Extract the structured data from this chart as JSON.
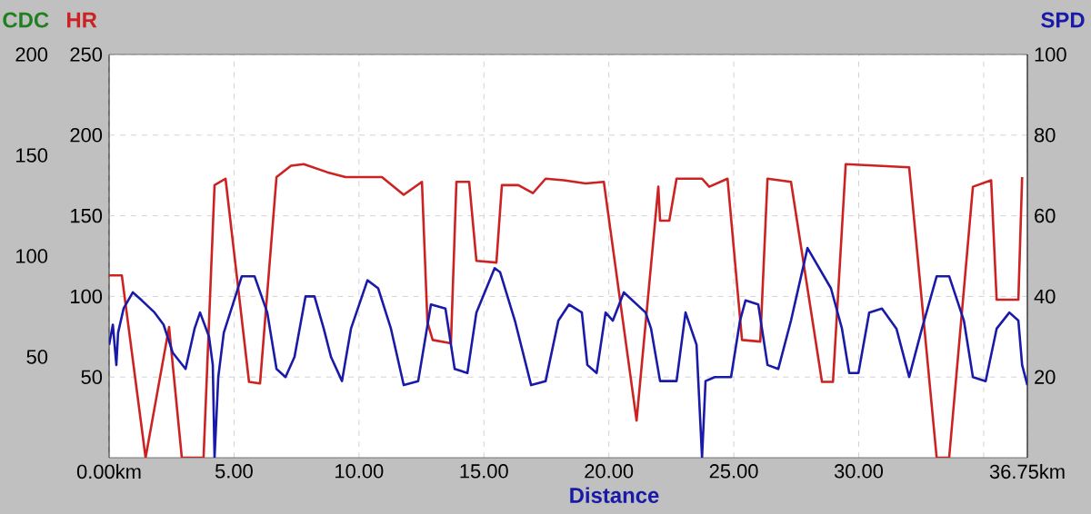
{
  "chart_data": {
    "type": "line",
    "xlabel": "Distance",
    "ylabel": "HR",
    "y2label": "SPD",
    "y3label": "CDC",
    "xlim": [
      0,
      36.75
    ],
    "xticks": [
      {
        "value": 0,
        "label": "0.00km"
      },
      {
        "value": 5,
        "label": "5.00"
      },
      {
        "value": 10,
        "label": "10.00"
      },
      {
        "value": 15,
        "label": "15.00"
      },
      {
        "value": 20,
        "label": "20.00"
      },
      {
        "value": 25,
        "label": "25.00"
      },
      {
        "value": 30,
        "label": "30.00"
      },
      {
        "value": 35,
        "label": null
      },
      {
        "value": 36.75,
        "label": "36.75km"
      }
    ],
    "ylim": [
      0,
      250
    ],
    "yticks": [
      50,
      100,
      150,
      200,
      250
    ],
    "y2lim": [
      0,
      100
    ],
    "y2ticks": [
      20,
      40,
      60,
      80,
      100
    ],
    "y3lim": [
      0,
      200
    ],
    "y3ticks": [
      50,
      100,
      150,
      200
    ],
    "grid": true,
    "marker": "none",
    "line_style": "solid",
    "series": [
      {
        "name": null,
        "axis": "y",
        "color": "#cc2222",
        "x": [
          0,
          0.51,
          1.46,
          2.4,
          2.91,
          3.42,
          3.78,
          4.22,
          4.66,
          5.6,
          6.04,
          6.7,
          7.28,
          7.79,
          8.73,
          9.46,
          10.92,
          11.79,
          12.52,
          12.74,
          12.95,
          13.68,
          13.9,
          14.41,
          14.7,
          15.5,
          15.72,
          16.38,
          16.96,
          17.47,
          18.2,
          19.07,
          19.8,
          21.11,
          21.98,
          22.05,
          22.42,
          22.71,
          23.73,
          24.02,
          24.75,
          25.33,
          26.06,
          26.35,
          27.29,
          28.53,
          28.97,
          29.48,
          32.02,
          33.12,
          33.62,
          34.57,
          35.3,
          35.52,
          36.39,
          36.54
        ],
        "values": [
          113,
          113,
          0,
          81,
          0,
          0,
          0,
          169,
          173,
          47,
          46,
          174,
          181,
          182,
          177,
          174,
          174,
          163,
          171,
          84,
          73,
          71,
          171,
          171,
          122,
          121,
          169,
          169,
          164,
          173,
          172,
          170,
          171,
          23,
          168,
          147,
          147,
          173,
          173,
          168,
          173,
          73,
          72,
          173,
          171,
          47,
          47,
          182,
          180,
          0,
          0,
          168,
          172,
          98,
          98,
          174
        ]
      },
      {
        "name": null,
        "axis": "y2",
        "color": "#1a1aa8",
        "x": [
          0,
          0.15,
          0.29,
          0.36,
          0.58,
          0.95,
          1.31,
          1.82,
          2.18,
          2.55,
          3.06,
          3.42,
          3.64,
          4.0,
          4.15,
          4.22,
          4.37,
          4.59,
          4.95,
          5.31,
          5.82,
          6.33,
          6.7,
          7.06,
          7.42,
          7.86,
          8.22,
          8.59,
          8.88,
          9.32,
          9.68,
          10.34,
          10.77,
          11.28,
          11.79,
          12.37,
          12.88,
          13.46,
          13.83,
          14.34,
          14.7,
          15.43,
          15.65,
          16.24,
          16.89,
          17.47,
          17.98,
          18.41,
          18.92,
          19.14,
          19.51,
          19.87,
          20.16,
          20.6,
          21.47,
          21.69,
          22.05,
          22.71,
          23.07,
          23.51,
          23.73,
          23.87,
          24.24,
          24.89,
          25.25,
          25.47,
          25.98,
          26.35,
          26.78,
          27.29,
          27.95,
          28.89,
          29.33,
          29.62,
          29.99,
          30.42,
          30.93,
          31.51,
          32.02,
          32.53,
          33.12,
          33.62,
          34.21,
          34.57,
          35.08,
          35.52,
          36.03,
          36.39,
          36.54,
          36.75
        ],
        "values": [
          28,
          33,
          23,
          31,
          37,
          41,
          39,
          36,
          33,
          26,
          22,
          32,
          36,
          30,
          23,
          0,
          20,
          31,
          38,
          45,
          45,
          36,
          22,
          20,
          25,
          40,
          40,
          32,
          25,
          19,
          32,
          44,
          42,
          32,
          18,
          19,
          38,
          37,
          22,
          21,
          36,
          47,
          46,
          34,
          18,
          19,
          34,
          38,
          36,
          23,
          21,
          36,
          34,
          41,
          36,
          32,
          19,
          19,
          36,
          28,
          0,
          19,
          20,
          20,
          34,
          39,
          38,
          23,
          22,
          34,
          52,
          42,
          32,
          21,
          21,
          36,
          37,
          32,
          20,
          32,
          45,
          45,
          34,
          20,
          19,
          32,
          36,
          34,
          23,
          18
        ]
      }
    ]
  }
}
